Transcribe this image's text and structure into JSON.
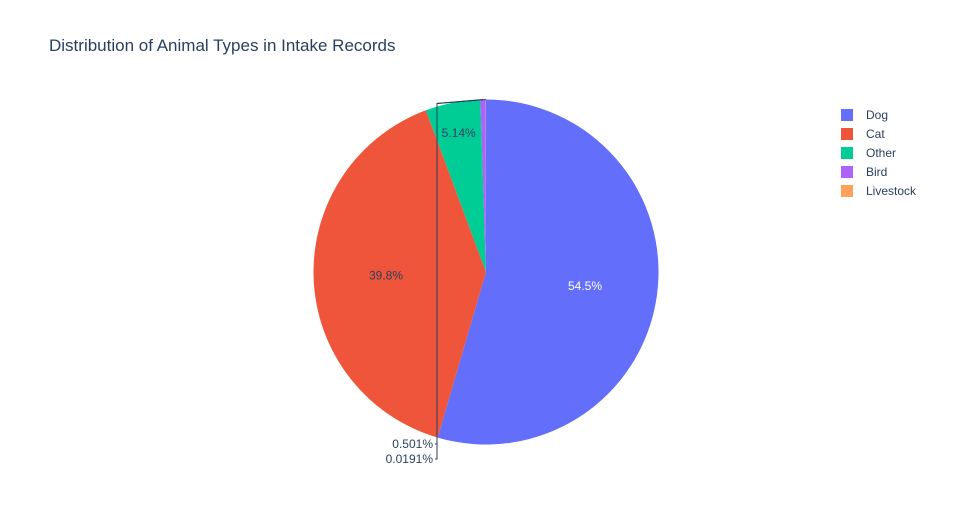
{
  "chart_data": {
    "type": "pie",
    "title": "Distribution of Animal Types in Intake Records",
    "categories": [
      "Dog",
      "Cat",
      "Other",
      "Bird",
      "Livestock"
    ],
    "values": [
      54.5,
      39.8,
      5.14,
      0.501,
      0.0191
    ],
    "labels": [
      "54.5%",
      "39.8%",
      "5.14%",
      "0.501%",
      "0.0191%"
    ],
    "colors": [
      "#636efa",
      "#ef553b",
      "#00cc96",
      "#ab63fa",
      "#ffa15a"
    ],
    "legend_position": "top-right",
    "direction": "clockwise",
    "start": "top"
  }
}
